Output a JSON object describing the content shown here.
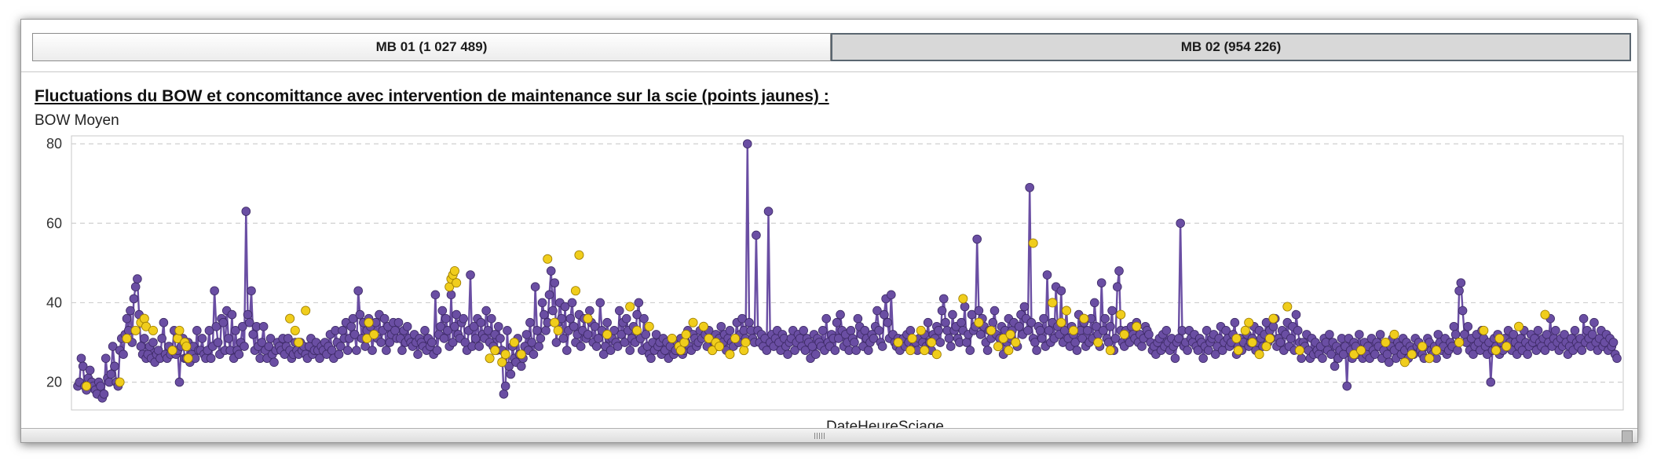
{
  "tabs": [
    {
      "label": "MB 01 (1 027 489)",
      "active": false
    },
    {
      "label": "MB 02 (954 226)",
      "active": true
    }
  ],
  "colors": {
    "normal": "#6a4ea3",
    "maintenance": "#f0cd1c",
    "grid": "#cfcfcf"
  },
  "chart_data": {
    "type": "scatter",
    "title": "Fluctuations du BOW et concomittance avec intervention de maintenance sur la scie (points jaunes) :",
    "ylabel": "BOW Moyen",
    "xlabel": "DateHeureSciage",
    "ylim": [
      13,
      82
    ],
    "yticks": [
      20,
      40,
      60,
      80
    ],
    "grid": true,
    "series": [
      {
        "name": "",
        "key": "normal",
        "values": [
          19,
          20,
          26,
          24,
          19,
          18,
          21,
          23,
          20,
          19,
          18,
          17,
          20,
          19,
          16,
          17,
          26,
          21,
          20,
          22,
          29,
          24,
          20,
          19,
          28,
          31,
          27,
          32,
          36,
          33,
          38,
          30,
          41,
          44,
          46,
          37,
          29,
          27,
          31,
          26,
          27,
          29,
          26,
          30,
          25,
          27,
          28,
          26,
          31,
          35,
          27,
          26,
          29,
          27,
          28,
          33,
          27,
          28,
          20,
          29,
          31,
          26,
          26,
          30,
          25,
          27,
          29,
          26,
          33,
          28,
          28,
          31,
          27,
          26,
          28,
          33,
          26,
          29,
          43,
          34,
          30,
          27,
          36,
          35,
          28,
          38,
          31,
          28,
          37,
          26,
          33,
          28,
          27,
          30,
          34,
          29,
          63,
          37,
          35,
          43,
          32,
          28,
          34,
          29,
          26,
          30,
          34,
          28,
          26,
          29,
          31,
          27,
          25,
          28,
          30,
          29,
          28,
          31,
          27,
          29,
          31,
          28,
          26,
          27,
          30,
          28,
          27,
          30,
          28,
          29,
          27,
          26,
          29,
          31,
          27,
          28,
          30,
          28,
          26,
          29,
          28,
          30,
          27,
          29,
          32,
          28,
          26,
          33,
          30,
          27,
          29,
          33,
          31,
          35,
          28,
          31,
          34,
          36,
          32,
          28,
          43,
          37,
          31,
          35,
          29,
          33,
          36,
          34,
          28,
          32,
          35,
          31,
          37,
          30,
          33,
          36,
          28,
          34,
          30,
          32,
          35,
          33,
          31,
          35,
          31,
          28,
          33,
          30,
          34,
          31,
          30,
          29,
          32,
          30,
          27,
          31,
          30,
          29,
          33,
          28,
          31,
          29,
          30,
          27,
          42,
          28,
          32,
          34,
          38,
          31,
          36,
          33,
          29,
          42,
          30,
          34,
          37,
          32,
          31,
          35,
          36,
          30,
          28,
          33,
          47,
          29,
          34,
          31,
          36,
          29,
          35,
          32,
          31,
          38,
          33,
          30,
          36,
          29,
          32,
          28,
          34,
          31,
          28,
          17,
          19,
          33,
          24,
          22,
          29,
          26,
          25,
          31,
          27,
          24,
          26,
          29,
          32,
          28,
          35,
          30,
          27,
          44,
          33,
          29,
          31,
          40,
          37,
          33,
          35,
          42,
          48,
          38,
          45,
          30,
          35,
          40,
          36,
          31,
          39,
          28,
          33,
          36,
          40,
          34,
          30,
          32,
          37,
          29,
          33,
          36,
          31,
          32,
          38,
          35,
          30,
          34,
          29,
          31,
          40,
          33,
          27,
          29,
          35,
          31,
          28,
          31,
          33,
          30,
          29,
          38,
          32,
          35,
          30,
          36,
          33,
          28,
          31,
          34,
          30,
          37,
          40,
          31,
          28,
          36,
          32,
          29,
          27,
          26,
          30,
          28,
          32,
          29,
          30,
          27,
          31,
          28,
          30,
          26,
          29,
          31,
          27,
          28,
          30,
          29,
          31,
          27,
          28,
          30,
          33,
          29,
          28,
          32,
          31,
          29,
          30,
          33,
          31,
          34,
          32,
          29,
          33,
          31,
          28,
          30,
          32,
          29,
          31,
          34,
          30,
          32,
          28,
          31,
          33,
          30,
          29,
          31,
          35,
          30,
          32,
          36,
          33,
          31,
          80,
          35,
          33,
          31,
          30,
          57,
          33,
          30,
          32,
          29,
          31,
          28,
          63,
          30,
          32,
          29,
          31,
          33,
          30,
          28,
          32,
          31,
          29,
          27,
          30,
          31,
          33,
          28,
          30,
          32,
          31,
          29,
          33,
          28,
          31,
          30,
          26,
          29,
          32,
          27,
          31,
          30,
          29,
          33,
          28,
          36,
          30,
          29,
          32,
          31,
          28,
          35,
          31,
          37,
          33,
          29,
          32,
          30,
          28,
          33,
          31,
          30,
          28,
          36,
          34,
          32,
          29,
          33,
          31,
          28,
          30,
          32,
          31,
          34,
          38,
          33,
          30,
          29,
          37,
          41,
          35,
          31,
          42,
          32,
          30,
          29,
          31,
          28,
          30,
          31,
          29,
          32,
          30,
          33,
          31,
          29,
          30,
          28,
          31,
          33,
          30,
          32,
          29,
          35,
          30,
          28,
          32,
          31,
          34,
          33,
          30,
          38,
          41,
          35,
          33,
          31,
          29,
          37,
          33,
          34,
          31,
          30,
          35,
          33,
          39,
          30,
          32,
          28,
          37,
          33,
          34,
          56,
          38,
          32,
          36,
          34,
          30,
          28,
          33,
          31,
          35,
          38,
          32,
          29,
          31,
          34,
          27,
          33,
          30,
          36,
          31,
          33,
          35,
          30,
          29,
          34,
          37,
          32,
          39,
          36,
          33,
          69,
          35,
          31,
          30,
          28,
          34,
          33,
          31,
          36,
          29,
          47,
          33,
          30,
          35,
          31,
          44,
          34,
          32,
          43,
          30,
          33,
          38,
          31,
          29,
          34,
          32,
          30,
          28,
          37,
          33,
          31,
          35,
          29,
          33,
          30,
          36,
          31,
          40,
          34,
          32,
          29,
          45,
          33,
          36,
          31,
          30,
          34,
          38,
          28,
          31,
          44,
          48,
          33,
          30,
          29,
          33,
          31,
          30,
          34,
          32,
          31,
          35,
          30,
          32,
          29,
          31,
          34,
          33,
          32,
          30,
          28,
          29,
          27,
          30,
          31,
          28,
          32,
          29,
          33,
          30,
          28,
          31,
          29,
          26,
          30,
          31,
          60,
          33,
          29,
          30,
          28,
          33,
          31,
          30,
          32,
          29,
          28,
          31,
          30,
          26,
          29,
          33,
          28,
          30,
          31,
          32,
          27,
          29,
          31,
          34,
          28,
          30,
          33,
          31,
          29,
          30,
          32,
          35,
          27,
          29,
          31,
          28,
          30,
          33,
          32,
          29,
          30,
          31,
          34,
          28,
          30,
          33,
          31,
          29,
          32,
          35,
          30,
          33,
          31,
          34,
          36,
          29,
          31,
          30,
          33,
          28,
          32,
          35,
          29,
          31,
          34,
          28,
          37,
          33,
          30,
          26,
          30,
          29,
          32,
          28,
          26,
          31,
          27,
          30,
          28,
          27,
          29,
          26,
          31,
          30,
          28,
          32,
          27,
          30,
          24,
          29,
          26,
          28,
          31,
          27,
          29,
          19,
          31,
          28,
          26,
          30,
          29,
          27,
          32,
          28,
          26,
          30,
          27,
          29,
          26,
          31,
          28,
          27,
          30,
          29,
          32,
          26,
          28,
          30,
          27,
          25,
          29,
          31,
          28,
          26,
          30,
          29,
          27,
          31,
          28,
          30,
          26,
          29,
          28,
          27,
          31,
          29,
          30,
          28,
          27,
          26,
          29,
          31,
          30,
          28,
          27,
          29,
          26,
          32,
          30,
          28,
          29,
          31,
          27,
          28,
          30,
          29,
          34,
          32,
          28,
          43,
          45,
          38,
          32,
          30,
          34,
          28,
          31,
          27,
          29,
          32,
          30,
          28,
          33,
          31,
          29,
          27,
          30,
          20,
          28,
          31,
          29,
          32,
          27,
          30,
          28,
          31,
          29,
          33,
          30,
          28,
          32,
          30,
          27,
          29,
          31,
          28,
          33,
          30,
          27,
          29,
          32,
          30,
          31,
          28,
          33,
          30,
          29,
          31,
          28,
          32,
          30,
          36,
          29,
          31,
          33,
          30,
          28,
          31,
          29,
          32,
          30,
          27,
          29,
          31,
          28,
          33,
          30,
          29,
          31,
          28,
          36,
          30,
          33,
          31,
          29,
          32,
          35,
          30,
          28,
          31,
          33,
          29,
          30,
          32,
          28,
          31,
          29,
          30,
          27,
          26
        ]
      },
      {
        "name": "",
        "key": "maintenance",
        "x": [
          5,
          24,
          28,
          33,
          36,
          38,
          39,
          43,
          54,
          57,
          58,
          61,
          62,
          63,
          121,
          124,
          126,
          130,
          165,
          166,
          169,
          212,
          213,
          214,
          215,
          216,
          235,
          238,
          242,
          244,
          249,
          253,
          268,
          272,
          274,
          284,
          286,
          291,
          302,
          315,
          319,
          326,
          339,
          343,
          344,
          346,
          347,
          351,
          357,
          360,
          362,
          364,
          366,
          372,
          375,
          380,
          381,
          468,
          475,
          476,
          481,
          483,
          487,
          490,
          505,
          514,
          521,
          525,
          528,
          531,
          532,
          535,
          545,
          556,
          561,
          564,
          568,
          574,
          582,
          589,
          595,
          597,
          604,
          661,
          662,
          666,
          668,
          670,
          674,
          678,
          680,
          682,
          690,
          697,
          728,
          732,
          746,
          751,
          757,
          761,
          767,
          771,
          775,
          788,
          802,
          809,
          811,
          815,
          822,
          837
        ],
        "values": [
          19,
          20,
          31,
          33,
          35,
          36,
          34,
          33,
          28,
          31,
          33,
          30,
          29,
          26,
          36,
          33,
          30,
          38,
          31,
          35,
          32,
          44,
          46,
          47,
          48,
          45,
          26,
          28,
          25,
          27,
          30,
          27,
          51,
          35,
          33,
          43,
          52,
          36,
          32,
          39,
          33,
          34,
          31,
          29,
          28,
          30,
          32,
          35,
          34,
          31,
          28,
          30,
          29,
          27,
          31,
          28,
          30,
          30,
          28,
          31,
          33,
          28,
          30,
          27,
          41,
          35,
          33,
          29,
          31,
          28,
          32,
          30,
          55,
          40,
          35,
          38,
          33,
          36,
          30,
          28,
          37,
          32,
          34,
          31,
          28,
          33,
          35,
          30,
          27,
          29,
          31,
          36,
          39,
          28,
          27,
          28,
          30,
          32,
          25,
          27,
          29,
          26,
          28,
          30,
          33,
          28,
          31,
          29,
          34,
          37
        ]
      }
    ]
  }
}
